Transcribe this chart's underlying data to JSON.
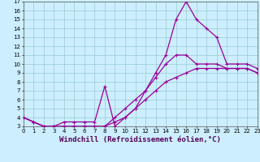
{
  "xlabel": "Windchill (Refroidissement éolien,°C)",
  "bg_color": "#cceeff",
  "grid_color": "#99cccc",
  "line_color": "#990099",
  "line1_x": [
    0,
    1,
    2,
    3,
    4,
    5,
    6,
    7,
    8,
    9,
    10,
    11,
    12,
    13,
    14,
    15,
    16,
    17,
    18,
    19,
    20,
    21,
    22,
    23
  ],
  "line1_y": [
    4,
    3.5,
    3,
    3,
    3,
    3,
    3,
    3,
    3,
    3.5,
    4,
    5,
    6,
    7,
    8,
    8.5,
    9,
    9.5,
    9.5,
    9.5,
    9.5,
    9.5,
    9.5,
    9
  ],
  "line2_x": [
    0,
    1,
    2,
    3,
    4,
    5,
    6,
    7,
    8,
    9,
    10,
    11,
    12,
    13,
    14,
    15,
    16,
    17,
    18,
    19,
    20,
    21,
    22,
    23
  ],
  "line2_y": [
    4,
    3.5,
    3,
    3,
    3.5,
    3.5,
    3.5,
    3.5,
    7.5,
    3,
    4,
    5,
    7,
    9,
    11,
    15,
    17,
    15,
    14,
    13,
    10,
    10,
    10,
    9.5
  ],
  "line3_x": [
    0,
    1,
    2,
    3,
    4,
    5,
    6,
    7,
    8,
    9,
    10,
    11,
    12,
    13,
    14,
    15,
    16,
    17,
    18,
    19,
    20,
    21,
    22,
    23
  ],
  "line3_y": [
    4,
    3.5,
    3,
    3,
    3,
    3,
    3,
    3,
    3,
    4,
    5,
    6,
    7,
    8.5,
    10,
    11,
    11,
    10,
    10,
    10,
    9.5,
    9.5,
    9.5,
    9
  ],
  "xlim": [
    0,
    23
  ],
  "ylim": [
    3,
    17
  ],
  "yticks": [
    3,
    4,
    5,
    6,
    7,
    8,
    9,
    10,
    11,
    12,
    13,
    14,
    15,
    16,
    17
  ],
  "xticks": [
    0,
    1,
    2,
    3,
    4,
    5,
    6,
    7,
    8,
    9,
    10,
    11,
    12,
    13,
    14,
    15,
    16,
    17,
    18,
    19,
    20,
    21,
    22,
    23
  ],
  "tick_fontsize": 5,
  "xlabel_fontsize": 6.5
}
